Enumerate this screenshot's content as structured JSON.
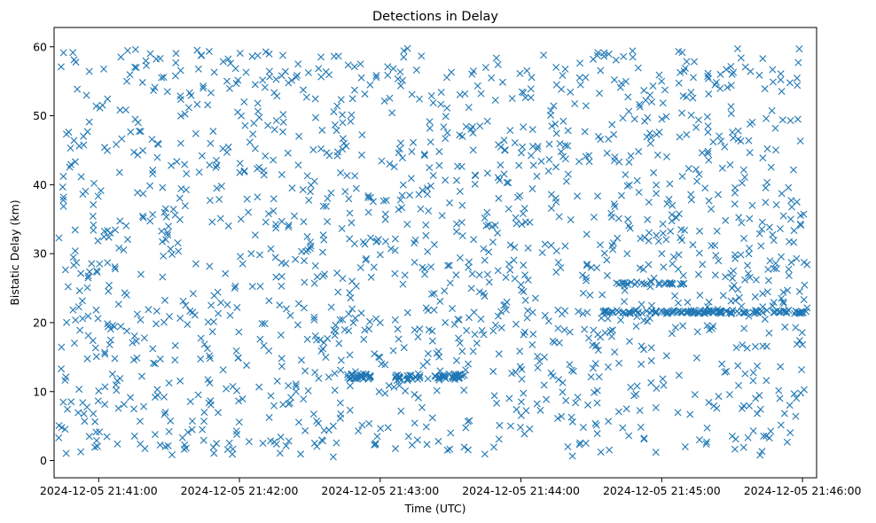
{
  "chart_data": {
    "type": "scatter",
    "title": "Detections in Delay",
    "xlabel": "Time (UTC)",
    "ylabel": "Bistatic Delay (km)",
    "x_unit": "seconds after 2024-12-05 21:41:00 UTC",
    "xlim": [
      -19,
      306
    ],
    "ylim": [
      -2.5,
      62.8
    ],
    "marker": "x",
    "color": "#1f77b4",
    "x_ticks": [
      {
        "value": 0,
        "label": "2024-12-05 21:41:00"
      },
      {
        "value": 60,
        "label": "2024-12-05 21:42:00"
      },
      {
        "value": 120,
        "label": "2024-12-05 21:43:00"
      },
      {
        "value": 180,
        "label": "2024-12-05 21:44:00"
      },
      {
        "value": 240,
        "label": "2024-12-05 21:45:00"
      },
      {
        "value": 300,
        "label": "2024-12-05 21:46:00"
      }
    ],
    "y_ticks": [
      {
        "value": 0,
        "label": "0"
      },
      {
        "value": 10,
        "label": "10"
      },
      {
        "value": 20,
        "label": "20"
      },
      {
        "value": 30,
        "label": "30"
      },
      {
        "value": 40,
        "label": "40"
      },
      {
        "value": 50,
        "label": "50"
      },
      {
        "value": 60,
        "label": "60"
      }
    ],
    "sample_points": [
      [
        -17,
        3.3
      ],
      [
        -16,
        57.1
      ],
      [
        -15,
        38.2
      ],
      [
        -14,
        12.1
      ],
      [
        -13,
        25.2
      ],
      [
        -12,
        45.3
      ],
      [
        -10,
        30.4
      ],
      [
        -8,
        18.9
      ],
      [
        -6,
        5.7
      ],
      [
        -4,
        49.1
      ],
      [
        -2,
        40.2
      ],
      [
        0,
        10.1
      ],
      [
        5,
        33.0
      ],
      [
        8,
        2.4
      ],
      [
        12,
        55.0
      ],
      [
        15,
        14.6
      ],
      [
        18,
        27.0
      ],
      [
        22,
        59.0
      ],
      [
        25,
        10.3
      ],
      [
        28,
        36.0
      ],
      [
        30,
        4.2
      ],
      [
        35,
        46.0
      ],
      [
        40,
        21.5
      ],
      [
        42,
        59.5
      ],
      [
        45,
        7.0
      ],
      [
        50,
        42.5
      ],
      [
        55,
        1.6
      ],
      [
        58,
        25.0
      ],
      [
        62,
        52.0
      ],
      [
        65,
        30.0
      ],
      [
        70,
        2.5
      ],
      [
        75,
        48.0
      ],
      [
        80,
        22.0
      ],
      [
        85,
        57.5
      ],
      [
        88,
        13.0
      ],
      [
        92,
        40.5
      ],
      [
        96,
        32.0
      ],
      [
        100,
        5.0
      ],
      [
        104,
        49.0
      ],
      [
        108,
        26.0
      ],
      [
        110,
        12.3
      ],
      [
        112,
        55.5
      ],
      [
        115,
        36.0
      ],
      [
        118,
        2.5
      ],
      [
        120,
        20.0
      ],
      [
        124,
        43.0
      ],
      [
        128,
        12.2
      ],
      [
        130,
        58.5
      ],
      [
        135,
        12.1
      ],
      [
        138,
        28.0
      ],
      [
        140,
        39.5
      ],
      [
        145,
        12.0
      ],
      [
        150,
        4.0
      ],
      [
        155,
        47.0
      ],
      [
        160,
        21.5
      ],
      [
        165,
        57.0
      ],
      [
        170,
        33.0
      ],
      [
        175,
        9.0
      ],
      [
        180,
        25.5
      ],
      [
        185,
        48.0
      ],
      [
        190,
        15.0
      ],
      [
        195,
        37.5
      ],
      [
        200,
        2.0
      ],
      [
        205,
        55.5
      ],
      [
        210,
        28.0
      ],
      [
        215,
        21.5
      ],
      [
        220,
        44.0
      ],
      [
        225,
        7.5
      ],
      [
        230,
        21.5
      ],
      [
        235,
        53.0
      ],
      [
        240,
        30.0
      ],
      [
        245,
        21.5
      ],
      [
        250,
        2.0
      ],
      [
        255,
        40.5
      ],
      [
        260,
        21.5
      ],
      [
        265,
        56.0
      ],
      [
        270,
        25.0
      ],
      [
        275,
        21.5
      ],
      [
        280,
        9.0
      ],
      [
        285,
        45.2
      ],
      [
        290,
        21.5
      ],
      [
        295,
        35.0
      ],
      [
        298,
        49.5
      ],
      [
        300,
        16.8
      ]
    ]
  }
}
